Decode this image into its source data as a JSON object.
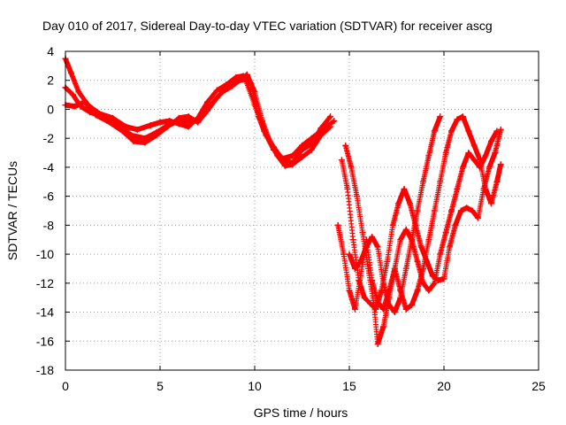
{
  "chart_data": {
    "type": "scatter",
    "title": "Day 010 of 2017, Sidereal Day-to-day VTEC variation (SDTVAR) for receiver ascg",
    "xlabel": "GPS time / hours",
    "ylabel": "SDTVAR / TECUs",
    "xlim": [
      0,
      25
    ],
    "ylim": [
      -18,
      4
    ],
    "xticks": [
      0,
      5,
      10,
      15,
      20,
      25
    ],
    "yticks": [
      4,
      2,
      0,
      -2,
      -4,
      -6,
      -8,
      -10,
      -12,
      -14,
      -16,
      -18
    ],
    "grid": true,
    "marker": "+",
    "series_color": "#ff0000",
    "series": [
      {
        "x": [
          0.0,
          0.3,
          0.7,
          1.2,
          1.8,
          2.5,
          3.2,
          3.8,
          4.5,
          5.0,
          5.5,
          6.0,
          6.5,
          7.0,
          7.5,
          8.0,
          8.5,
          9.0,
          9.4,
          9.8,
          10.2,
          10.6,
          11.0,
          11.5,
          12.0,
          12.5,
          13.0,
          13.5,
          14.0
        ],
        "y": [
          3.5,
          2.5,
          1.2,
          0.3,
          -0.3,
          -0.6,
          -1.2,
          -1.4,
          -1.1,
          -0.9,
          -0.8,
          -1.0,
          -1.2,
          -0.6,
          0.5,
          1.3,
          1.7,
          2.2,
          2.3,
          1.8,
          -0.5,
          -1.8,
          -2.6,
          -3.5,
          -3.7,
          -2.8,
          -2.4,
          -1.3,
          -0.5
        ]
      },
      {
        "x": [
          0.0,
          0.4,
          0.8,
          1.3,
          2.0,
          2.8,
          3.5,
          4.2,
          4.8,
          5.3,
          5.8,
          6.3,
          6.8,
          7.3,
          7.8,
          8.3,
          8.8,
          9.2,
          9.6,
          10.0,
          10.4,
          10.8,
          11.2,
          11.6,
          12.0,
          12.5,
          13.0,
          13.5,
          14.0
        ],
        "y": [
          1.5,
          1.0,
          0.2,
          -0.2,
          -0.5,
          -1.0,
          -1.8,
          -2.0,
          -1.6,
          -1.2,
          -0.9,
          -0.8,
          -0.8,
          -0.3,
          0.5,
          1.2,
          1.6,
          2.0,
          2.4,
          1.2,
          -0.8,
          -2.2,
          -3.2,
          -3.9,
          -3.8,
          -3.3,
          -2.8,
          -1.8,
          -1.2
        ]
      },
      {
        "x": [
          0.0,
          0.5,
          1.0,
          1.6,
          2.2,
          3.0,
          3.6,
          4.2,
          4.8,
          5.4,
          6.0,
          6.5,
          7.0,
          7.5,
          8.0,
          8.5,
          9.0,
          9.5,
          10.0,
          10.5,
          11.0,
          11.5,
          12.0,
          12.5,
          13.0,
          13.5,
          14.2
        ],
        "y": [
          0.3,
          0.2,
          0.5,
          -0.4,
          -0.8,
          -1.5,
          -2.2,
          -2.3,
          -1.8,
          -1.2,
          -0.6,
          -0.5,
          -0.9,
          -0.1,
          0.8,
          1.5,
          1.9,
          2.1,
          0.3,
          -1.5,
          -2.8,
          -3.4,
          -3.2,
          -2.5,
          -2.0,
          -1.5,
          -0.8
        ]
      },
      {
        "x": [
          14.6,
          14.9,
          15.2,
          15.5,
          15.8,
          16.1,
          16.4,
          16.7,
          17.0,
          17.3,
          17.6,
          17.9,
          18.2,
          18.5,
          18.8,
          19.1,
          19.4,
          19.7,
          20.0,
          20.3,
          20.6,
          20.9,
          21.2,
          21.5,
          21.8,
          22.1,
          22.4,
          22.7,
          23.0
        ],
        "y": [
          -3.5,
          -5.5,
          -9.0,
          -11.8,
          -13.0,
          -13.4,
          -13.8,
          -12.5,
          -10.5,
          -8.0,
          -6.5,
          -5.5,
          -6.5,
          -8.0,
          -9.5,
          -10.5,
          -11.5,
          -11.8,
          -11.7,
          -9.5,
          -8.0,
          -7.0,
          -6.8,
          -7.0,
          -7.5,
          -5.5,
          -4.0,
          -3.0,
          -1.4
        ]
      },
      {
        "x": [
          14.8,
          15.1,
          15.4,
          15.7,
          16.0,
          16.3,
          16.5,
          16.8,
          17.1,
          17.4,
          17.7,
          18.0,
          18.3,
          18.6,
          18.9,
          19.2,
          19.5,
          19.8,
          20.1,
          20.4,
          20.7,
          21.0,
          21.3,
          21.6,
          21.9,
          22.2,
          22.5,
          22.8
        ],
        "y": [
          -2.5,
          -4.0,
          -6.0,
          -8.5,
          -11.0,
          -13.5,
          -16.2,
          -15.0,
          -13.0,
          -11.0,
          -9.0,
          -8.3,
          -9.0,
          -10.5,
          -12.0,
          -12.5,
          -12.0,
          -10.0,
          -8.5,
          -7.0,
          -5.5,
          -4.0,
          -3.0,
          -3.5,
          -4.0,
          -3.2,
          -2.2,
          -1.5
        ]
      },
      {
        "x": [
          14.4,
          14.7,
          15.0,
          15.3,
          15.6,
          15.9,
          16.2,
          16.5,
          16.8,
          17.1,
          17.4,
          17.7,
          18.0,
          18.3,
          18.6,
          18.9,
          19.2,
          19.5,
          19.8,
          20.1,
          20.4,
          20.7,
          21.0,
          21.3,
          21.6,
          21.9,
          22.2,
          22.5,
          22.8,
          23.0
        ],
        "y": [
          -8.0,
          -10.0,
          -12.5,
          -13.8,
          -11.5,
          -9.0,
          -11.8,
          -13.3,
          -13.8,
          -12.5,
          -11.0,
          -12.5,
          -13.8,
          -13.5,
          -12.5,
          -11.0,
          -9.0,
          -7.0,
          -5.0,
          -3.0,
          -1.5,
          -0.7,
          -0.5,
          -1.5,
          -2.5,
          -3.5,
          -5.5,
          -6.5,
          -5.0,
          -3.8
        ]
      },
      {
        "x": [
          15.0,
          15.3,
          15.6,
          15.9,
          16.2,
          16.5,
          16.8,
          17.1,
          17.4,
          17.7,
          18.0,
          18.3,
          18.6,
          18.9,
          19.2,
          19.5,
          19.8
        ],
        "y": [
          -10.0,
          -11.0,
          -10.5,
          -9.5,
          -8.8,
          -9.5,
          -12.0,
          -13.5,
          -14.0,
          -13.0,
          -11.0,
          -9.0,
          -7.0,
          -5.0,
          -3.2,
          -1.5,
          -0.5
        ]
      }
    ]
  }
}
